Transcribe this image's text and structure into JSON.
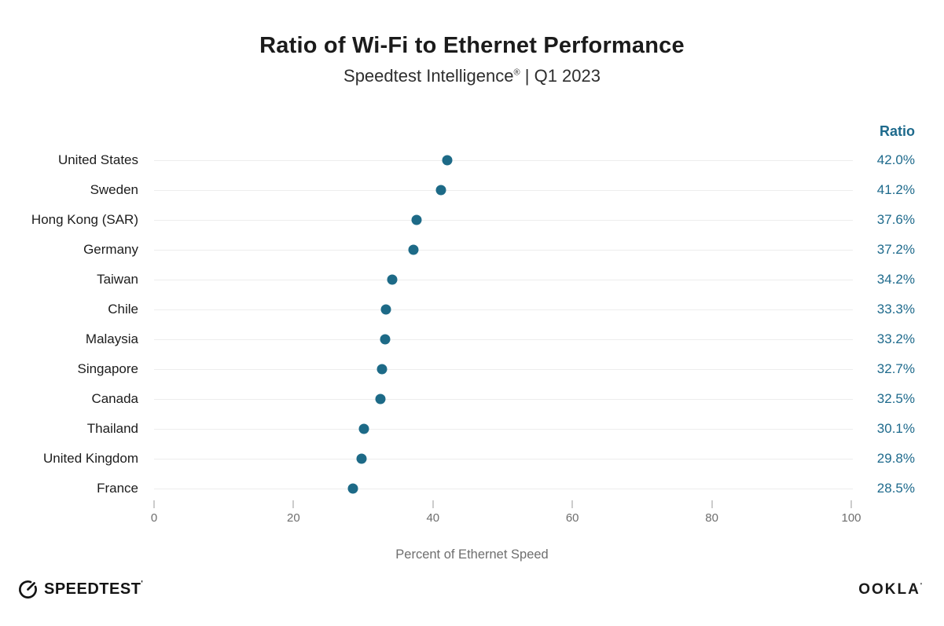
{
  "header": {
    "title": "Ratio of Wi-Fi to Ethernet Performance",
    "subtitle_brand": "Speedtest Intelligence",
    "subtitle_mark": "®",
    "subtitle_sep": " | ",
    "subtitle_period": "Q1 2023"
  },
  "ratio_column": {
    "header": "Ratio"
  },
  "chart_data": {
    "type": "scatter",
    "variant": "horizontal-dot-plot",
    "title": "Ratio of Wi-Fi to Ethernet Performance",
    "subtitle": "Speedtest Intelligence® | Q1 2023",
    "categories": [
      "United States",
      "Sweden",
      "Hong Kong (SAR)",
      "Germany",
      "Taiwan",
      "Chile",
      "Malaysia",
      "Singapore",
      "Canada",
      "Thailand",
      "United Kingdom",
      "France"
    ],
    "values": [
      42.0,
      41.2,
      37.6,
      37.2,
      34.2,
      33.3,
      33.2,
      32.7,
      32.5,
      30.1,
      29.8,
      28.5
    ],
    "value_labels": [
      "42.0%",
      "41.2%",
      "37.6%",
      "37.2%",
      "34.2%",
      "33.3%",
      "33.2%",
      "32.7%",
      "32.5%",
      "30.1%",
      "29.8%",
      "28.5%"
    ],
    "xlabel": "Percent of Ethernet Speed",
    "xlim": [
      0,
      100
    ],
    "xticks": [
      0,
      20,
      40,
      60,
      80,
      100
    ],
    "grid": "horizontal-row-lines",
    "legend": "none"
  },
  "colors": {
    "dot": "#1d6a87",
    "ratio_text": "#1e6a8c",
    "gridline": "#ededed",
    "tick_mark": "#cccccc",
    "axis_text": "#6e6e6e",
    "label_text": "#1c1c1c",
    "title_text": "#1b1b1b"
  },
  "footer": {
    "speedtest_wordmark": "SPEEDTEST",
    "speedtest_mark": "'",
    "ookla_wordmark": "OOKLA",
    "ookla_mark": "'"
  }
}
